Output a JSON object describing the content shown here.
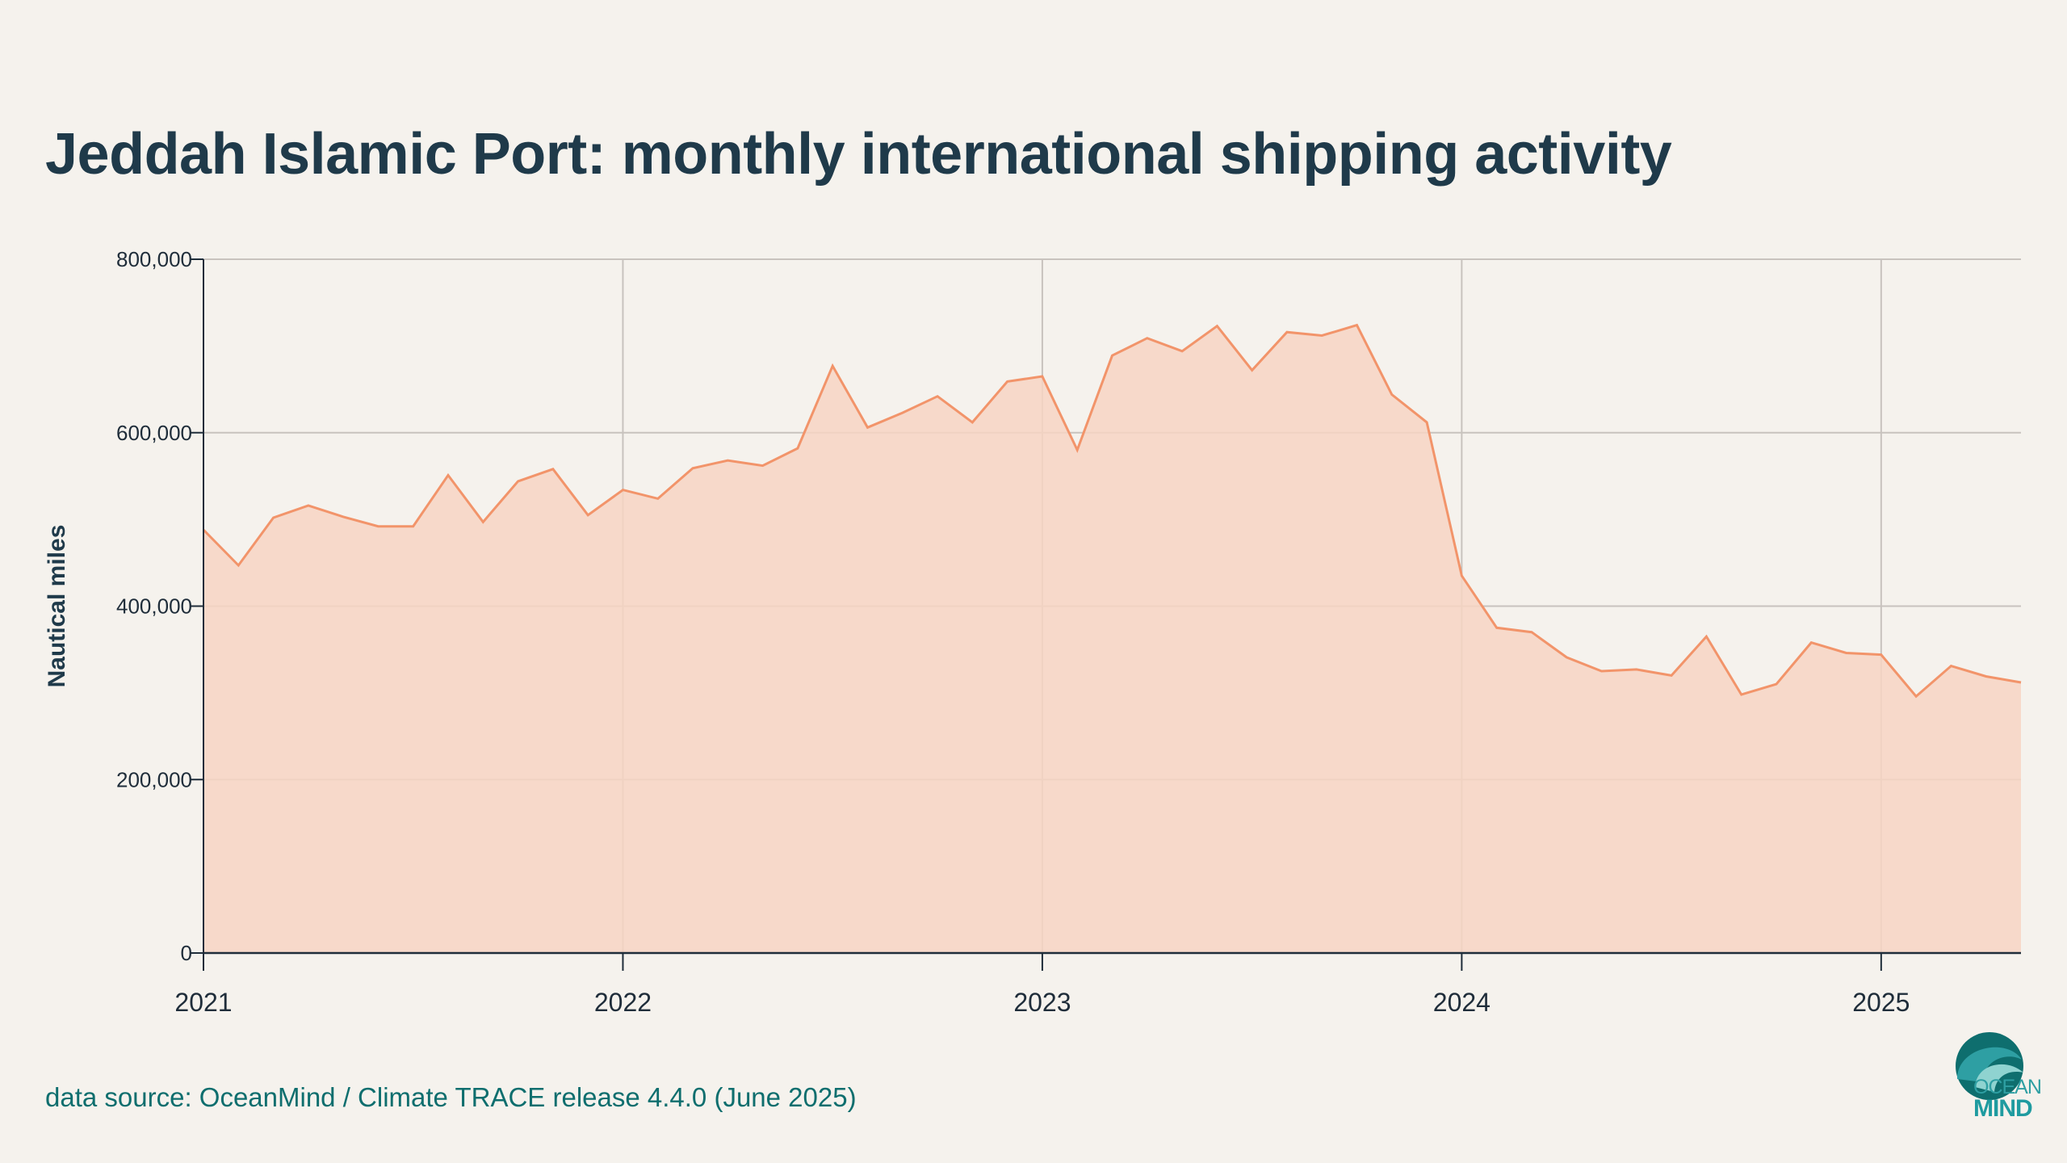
{
  "title": "Jeddah Islamic Port: monthly international shipping activity",
  "source": "data source: OceanMind / Climate TRACE release 4.4.0 (June 2025)",
  "logo": {
    "line1": "OCEAN",
    "line2": "MIND",
    "colors": [
      "#0e6e6e",
      "#2e9fa3",
      "#8fd3d0"
    ]
  },
  "colors": {
    "line": "#f2946a",
    "fill": "#f7d5c3",
    "grid": "#c8c3be",
    "axis": "#1f2d3a",
    "text": "#1f3a4a",
    "background": "#f5f2ed"
  },
  "chart_data": {
    "type": "area",
    "title": "",
    "xlabel": "",
    "ylabel": "Nautical miles",
    "xlim": [
      "2021-01",
      "2025-05"
    ],
    "ylim": [
      0,
      800000
    ],
    "yticks": [
      0,
      200000,
      400000,
      600000,
      800000
    ],
    "ytick_labels": [
      "0",
      "200,000",
      "400,000",
      "600,000",
      "800,000"
    ],
    "xtick_labels": [
      "2021",
      "2022",
      "2023",
      "2024",
      "2025"
    ],
    "grid": true,
    "series": [
      {
        "x": [
          "2021-01",
          "2021-02",
          "2021-03",
          "2021-04",
          "2021-05",
          "2021-06",
          "2021-07",
          "2021-08",
          "2021-09",
          "2021-10",
          "2021-11",
          "2021-12",
          "2022-01",
          "2022-02",
          "2022-03",
          "2022-04",
          "2022-05",
          "2022-06",
          "2022-07",
          "2022-08",
          "2022-09",
          "2022-10",
          "2022-11",
          "2022-12",
          "2023-01",
          "2023-02",
          "2023-03",
          "2023-04",
          "2023-05",
          "2023-06",
          "2023-07",
          "2023-08",
          "2023-09",
          "2023-10",
          "2023-11",
          "2023-12",
          "2024-01",
          "2024-02",
          "2024-03",
          "2024-04",
          "2024-05",
          "2024-06",
          "2024-07",
          "2024-08",
          "2024-09",
          "2024-10",
          "2024-11",
          "2024-12",
          "2025-01",
          "2025-02",
          "2025-03",
          "2025-04",
          "2025-05"
        ],
        "values": [
          488000,
          447000,
          502000,
          516000,
          503000,
          492000,
          492000,
          551000,
          497000,
          544000,
          558000,
          505000,
          534000,
          524000,
          559000,
          568000,
          562000,
          582000,
          677000,
          606000,
          623000,
          642000,
          612000,
          659000,
          665000,
          580000,
          689000,
          709000,
          694000,
          723000,
          672000,
          716000,
          712000,
          724000,
          644000,
          612000,
          435000,
          375000,
          370000,
          341000,
          325000,
          327000,
          320000,
          365000,
          298000,
          310000,
          358000,
          346000,
          344000,
          296000,
          331000,
          319000,
          312000
        ]
      }
    ]
  }
}
